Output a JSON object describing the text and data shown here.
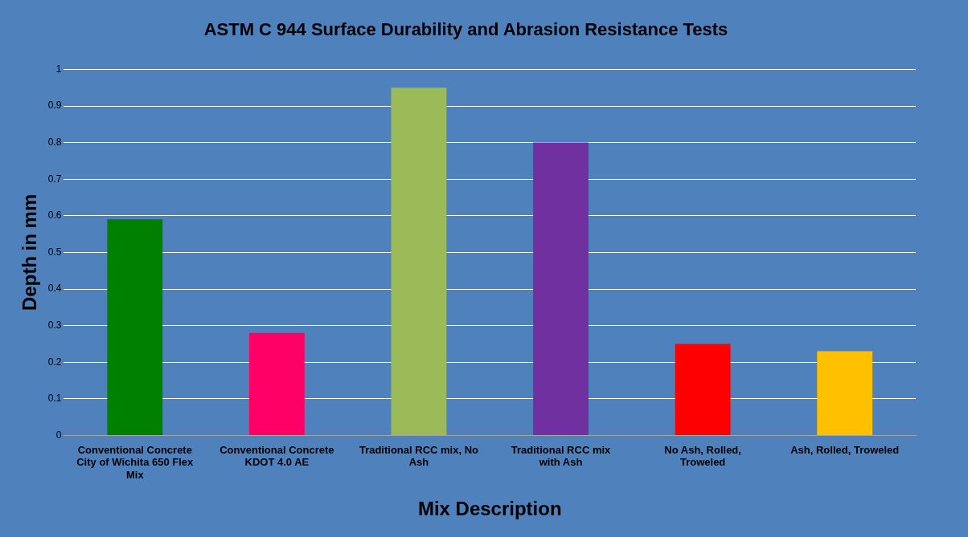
{
  "chart_data": {
    "type": "bar",
    "title": "ASTM C 944 Surface Durability and Abrasion Resistance Tests",
    "xlabel": "Mix Description",
    "ylabel": "Depth in mm",
    "categories": [
      "Conventional Concrete City of Wichita 650 Flex Mix",
      "Conventional Concrete KDOT 4.0 AE",
      "Traditional RCC mix, No Ash",
      "Traditional RCC mix with Ash",
      "No Ash, Rolled, Troweled",
      "Ash, Rolled, Troweled"
    ],
    "values": [
      0.59,
      0.28,
      0.95,
      0.8,
      0.25,
      0.23
    ],
    "colors": [
      "#008000",
      "#ff0066",
      "#9bbb59",
      "#7030a0",
      "#ff0000",
      "#ffc000"
    ],
    "ylim": [
      0,
      1
    ],
    "yticks": [
      0,
      0.1,
      0.2,
      0.3,
      0.4,
      0.5,
      0.6,
      0.7,
      0.8,
      0.9,
      1
    ],
    "grid": "y",
    "legend": false
  }
}
